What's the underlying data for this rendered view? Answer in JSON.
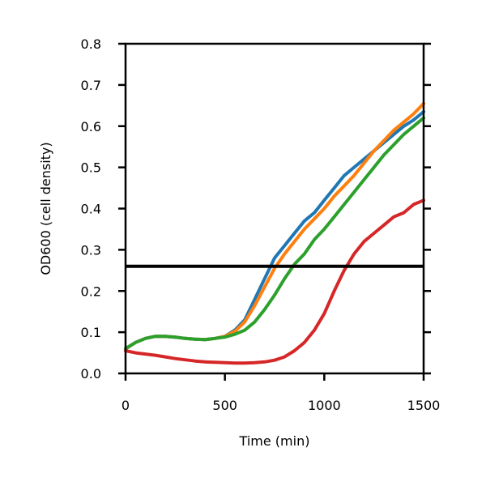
{
  "chart_data": {
    "type": "line",
    "title": "",
    "xlabel": "Time (min)",
    "ylabel": "OD600 (cell density)",
    "xlim": [
      0,
      1500
    ],
    "ylim": [
      0,
      0.8
    ],
    "xticks": [
      0,
      500,
      1000,
      1500
    ],
    "xtick_labels": [
      "0",
      "500",
      "1000",
      "1500"
    ],
    "yticks": [
      0,
      0.1,
      0.2,
      0.3,
      0.4,
      0.5,
      0.6,
      0.7,
      0.8
    ],
    "ytick_labels": [
      "0.0",
      "0.1",
      "0.2",
      "0.3",
      "0.4",
      "0.5",
      "0.6",
      "0.7",
      "0.8"
    ],
    "grid": false,
    "reference_line": {
      "y": 0.26,
      "color": "#000000"
    },
    "series": [
      {
        "color": "#1f77b4",
        "x": [
          0,
          50,
          100,
          150,
          200,
          250,
          300,
          350,
          400,
          450,
          500,
          550,
          600,
          650,
          700,
          750,
          800,
          850,
          900,
          950,
          1000,
          1050,
          1100,
          1150,
          1200,
          1250,
          1300,
          1350,
          1400,
          1450,
          1500
        ],
        "y": [
          0.06,
          0.075,
          0.085,
          0.09,
          0.09,
          0.088,
          0.085,
          0.083,
          0.082,
          0.085,
          0.09,
          0.105,
          0.13,
          0.18,
          0.23,
          0.28,
          0.31,
          0.34,
          0.37,
          0.39,
          0.42,
          0.45,
          0.48,
          0.5,
          0.52,
          0.54,
          0.56,
          0.58,
          0.6,
          0.615,
          0.635
        ]
      },
      {
        "color": "#ff7f0e",
        "x": [
          0,
          50,
          100,
          150,
          200,
          250,
          300,
          350,
          400,
          450,
          500,
          550,
          600,
          650,
          700,
          750,
          800,
          850,
          900,
          950,
          1000,
          1050,
          1100,
          1150,
          1200,
          1250,
          1300,
          1350,
          1400,
          1450,
          1500
        ],
        "y": [
          0.06,
          0.075,
          0.085,
          0.09,
          0.09,
          0.088,
          0.085,
          0.083,
          0.082,
          0.085,
          0.09,
          0.102,
          0.125,
          0.165,
          0.21,
          0.255,
          0.29,
          0.32,
          0.35,
          0.375,
          0.4,
          0.43,
          0.455,
          0.48,
          0.51,
          0.54,
          0.565,
          0.59,
          0.61,
          0.63,
          0.655
        ]
      },
      {
        "color": "#2ca02c",
        "x": [
          0,
          50,
          100,
          150,
          200,
          250,
          300,
          350,
          400,
          450,
          500,
          550,
          600,
          650,
          700,
          750,
          800,
          850,
          900,
          950,
          1000,
          1050,
          1100,
          1150,
          1200,
          1250,
          1300,
          1350,
          1400,
          1450,
          1500
        ],
        "y": [
          0.06,
          0.075,
          0.085,
          0.09,
          0.09,
          0.088,
          0.085,
          0.083,
          0.082,
          0.085,
          0.088,
          0.095,
          0.105,
          0.125,
          0.155,
          0.19,
          0.23,
          0.265,
          0.29,
          0.325,
          0.35,
          0.38,
          0.41,
          0.44,
          0.47,
          0.5,
          0.53,
          0.555,
          0.58,
          0.6,
          0.62
        ]
      },
      {
        "color": "#d62728",
        "x": [
          0,
          50,
          100,
          150,
          200,
          250,
          300,
          350,
          400,
          450,
          500,
          550,
          600,
          650,
          700,
          750,
          800,
          850,
          900,
          950,
          1000,
          1050,
          1100,
          1150,
          1200,
          1250,
          1300,
          1350,
          1400,
          1450,
          1500
        ],
        "y": [
          0.055,
          0.05,
          0.047,
          0.044,
          0.04,
          0.036,
          0.033,
          0.03,
          0.028,
          0.027,
          0.026,
          0.025,
          0.025,
          0.026,
          0.028,
          0.032,
          0.04,
          0.055,
          0.075,
          0.105,
          0.145,
          0.2,
          0.25,
          0.29,
          0.32,
          0.34,
          0.36,
          0.38,
          0.39,
          0.41,
          0.42
        ]
      }
    ]
  }
}
